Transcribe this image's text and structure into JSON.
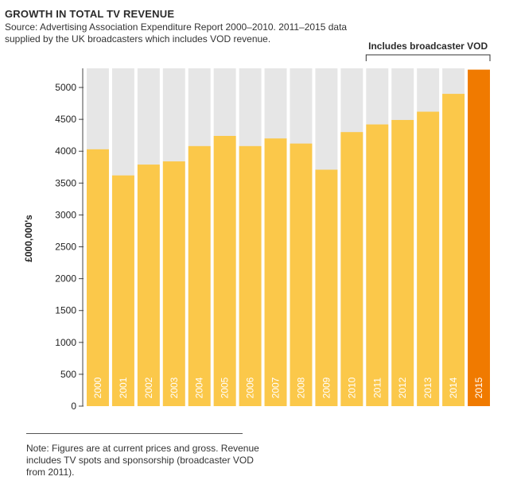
{
  "header": {
    "title": "GROWTH IN TOTAL TV REVENUE",
    "subtitle": "Source: Advertising Association Expenditure Report 2000–2010. 2011–2015 data supplied by the UK broadcasters which includes VOD revenue."
  },
  "footer": {
    "note": "Note: Figures are at current prices and gross. Revenue includes TV spots and sponsorship (broadcaster VOD from 2011)."
  },
  "chart_data": {
    "type": "bar",
    "ylabel": "£000,000's",
    "ylim": [
      0,
      5300
    ],
    "yticks": [
      "0",
      "500",
      "1000",
      "1500",
      "2000",
      "2500",
      "3000",
      "3500",
      "4000",
      "4500",
      "5000"
    ],
    "ytick_values": [
      0,
      500,
      1000,
      1500,
      2000,
      2500,
      3000,
      3500,
      4000,
      4500,
      5000
    ],
    "categories": [
      "2000",
      "2001",
      "2002",
      "2003",
      "2004",
      "2005",
      "2006",
      "2007",
      "2008",
      "2009",
      "2010",
      "2011",
      "2012",
      "2013",
      "2014",
      "2015"
    ],
    "values": [
      4030,
      3620,
      3790,
      3840,
      4080,
      4240,
      4080,
      4200,
      4120,
      3710,
      4300,
      4420,
      4490,
      4620,
      4900,
      5280
    ],
    "highlight_category": "2015",
    "annotation": {
      "label": "Includes broadcaster VOD",
      "from": "2011",
      "to": "2015"
    },
    "colors": {
      "bar": "#fbc84a",
      "highlight": "#f07a00",
      "background_bar": "#e6e6e6"
    },
    "grid": false
  }
}
